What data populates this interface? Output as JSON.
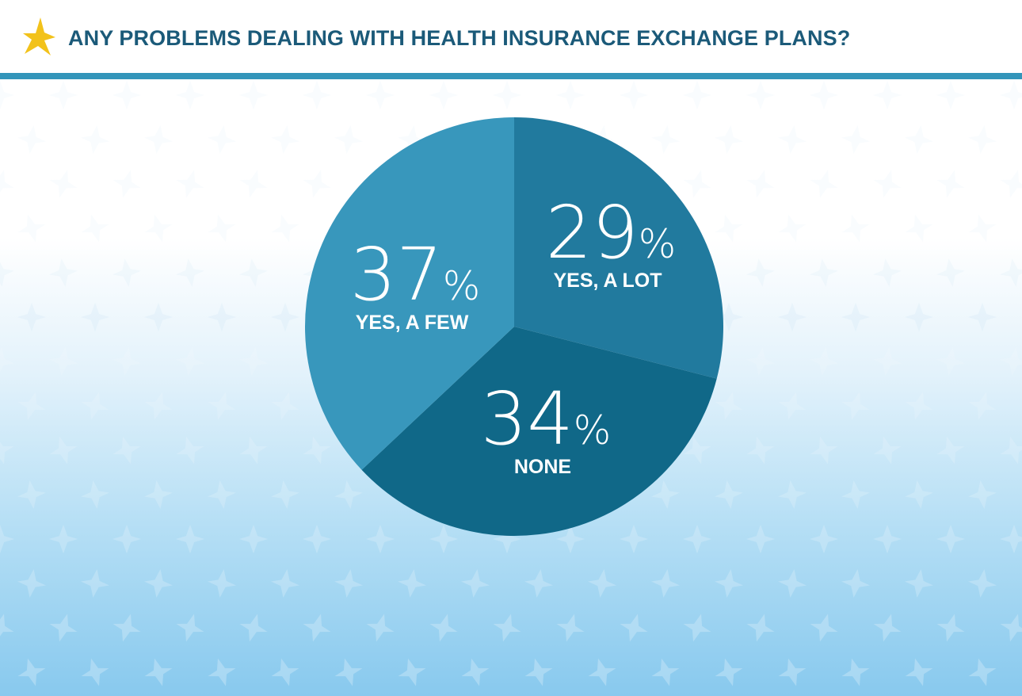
{
  "header": {
    "title": "ANY PROBLEMS DEALING WITH HEALTH INSURANCE EXCHANGE PLANS?",
    "icon": "star-icon",
    "accent_color": "#f2c21b",
    "title_color": "#1b5a79",
    "rule_color": "#3395ba"
  },
  "chart_data": {
    "type": "pie",
    "title": "ANY PROBLEMS DEALING WITH HEALTH INSURANCE EXCHANGE PLANS?",
    "slices": [
      {
        "label": "YES, A LOT",
        "value": 29,
        "display": "29",
        "unit": "%",
        "color": "#217a9e"
      },
      {
        "label": "NONE",
        "value": 34,
        "display": "34",
        "unit": "%",
        "color": "#106888"
      },
      {
        "label": "YES, A FEW",
        "value": 37,
        "display": "37",
        "unit": "%",
        "color": "#3897bc"
      }
    ],
    "start_angle": "12 o'clock",
    "direction": "clockwise",
    "legend": "none (labels inside slices)"
  }
}
